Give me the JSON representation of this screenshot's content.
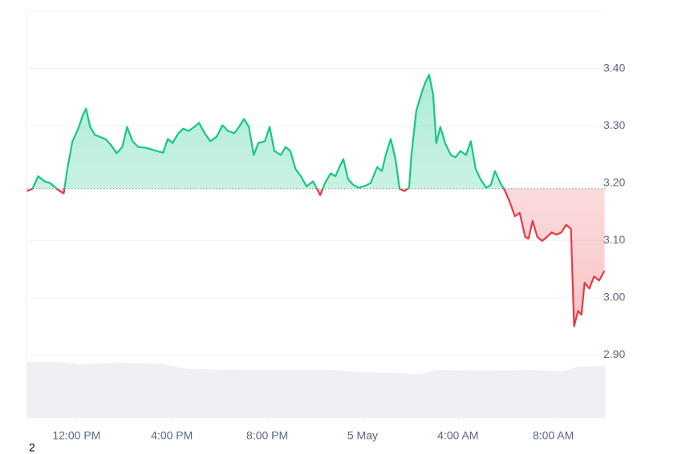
{
  "chart_data": {
    "type": "line",
    "x": [
      9.92,
      10.15,
      10.39,
      10.66,
      10.89,
      11.06,
      11.26,
      11.46,
      11.6,
      11.83,
      12.07,
      12.27,
      12.4,
      12.57,
      12.77,
      12.97,
      13.21,
      13.45,
      13.68,
      13.92,
      14.12,
      14.35,
      14.59,
      14.86,
      15.13,
      15.36,
      15.63,
      15.83,
      16.03,
      16.27,
      16.47,
      16.71,
      16.94,
      17.14,
      17.38,
      17.61,
      17.88,
      18.12,
      18.35,
      18.62,
      18.82,
      19.02,
      19.23,
      19.43,
      19.63,
      19.9,
      20.1,
      20.3,
      20.57,
      20.77,
      20.97,
      21.18,
      21.41,
      21.65,
      21.92,
      22.22,
      22.42,
      22.66,
      22.86,
      23.03,
      23.19,
      23.39,
      23.6,
      23.83,
      24.1,
      24.34,
      24.61,
      24.81,
      24.97,
      25.18,
      25.38,
      25.55,
      25.75,
      25.95,
      26.05,
      26.25,
      26.45,
      26.62,
      26.79,
      26.96,
      27.09,
      27.26,
      27.46,
      27.7,
      27.9,
      28.1,
      28.34,
      28.54,
      28.74,
      28.94,
      29.18,
      29.38,
      29.55,
      29.78,
      29.98,
      30.18,
      30.39,
      30.59,
      30.82,
      30.96,
      31.13,
      31.33,
      31.53,
      31.73,
      31.93,
      32.13,
      32.34,
      32.54,
      32.74,
      32.87,
      33.04,
      33.18,
      33.31,
      33.51,
      33.71,
      33.92,
      34.15
    ],
    "values": [
      3.186,
      3.19,
      3.212,
      3.203,
      3.2,
      3.194,
      3.187,
      3.182,
      3.221,
      3.273,
      3.295,
      3.319,
      3.33,
      3.298,
      3.284,
      3.281,
      3.277,
      3.266,
      3.252,
      3.263,
      3.298,
      3.273,
      3.263,
      3.262,
      3.259,
      3.256,
      3.253,
      3.277,
      3.27,
      3.287,
      3.295,
      3.291,
      3.298,
      3.305,
      3.287,
      3.273,
      3.281,
      3.301,
      3.291,
      3.287,
      3.298,
      3.312,
      3.298,
      3.249,
      3.27,
      3.273,
      3.298,
      3.256,
      3.249,
      3.263,
      3.256,
      3.225,
      3.212,
      3.194,
      3.203,
      3.179,
      3.2,
      3.217,
      3.212,
      3.228,
      3.242,
      3.207,
      3.197,
      3.192,
      3.195,
      3.2,
      3.228,
      3.221,
      3.249,
      3.277,
      3.242,
      3.19,
      3.186,
      3.192,
      3.249,
      3.326,
      3.354,
      3.375,
      3.389,
      3.354,
      3.27,
      3.298,
      3.27,
      3.249,
      3.245,
      3.256,
      3.249,
      3.273,
      3.225,
      3.207,
      3.192,
      3.197,
      3.221,
      3.2,
      3.186,
      3.166,
      3.142,
      3.148,
      3.106,
      3.103,
      3.134,
      3.106,
      3.099,
      3.106,
      3.114,
      3.11,
      3.114,
      3.127,
      3.12,
      2.95,
      2.977,
      2.97,
      3.026,
      3.016,
      3.037,
      3.03,
      3.047
    ],
    "baseline": 3.19,
    "colors": {
      "up": "#16c784",
      "down": "#ea3943"
    },
    "xlim": [
      9.9,
      34.2
    ],
    "xticks": [
      {
        "value": 12,
        "label": "12:00 PM"
      },
      {
        "value": 16,
        "label": "4:00 PM"
      },
      {
        "value": 20,
        "label": "8:00 PM"
      },
      {
        "value": 24,
        "label": "5 May"
      },
      {
        "value": 28,
        "label": "4:00 AM"
      },
      {
        "value": 32,
        "label": "8:00 AM"
      }
    ],
    "ylim": [
      2.79,
      3.5
    ],
    "yticks": [
      {
        "value": 2.9,
        "label": "2.90"
      },
      {
        "value": 3.0,
        "label": "3.00"
      },
      {
        "value": 3.1,
        "label": "3.10"
      },
      {
        "value": 3.2,
        "label": "3.20"
      },
      {
        "value": 3.3,
        "label": "3.30"
      },
      {
        "value": 3.4,
        "label": "3.40"
      }
    ],
    "grid": true
  },
  "footnote": "2"
}
